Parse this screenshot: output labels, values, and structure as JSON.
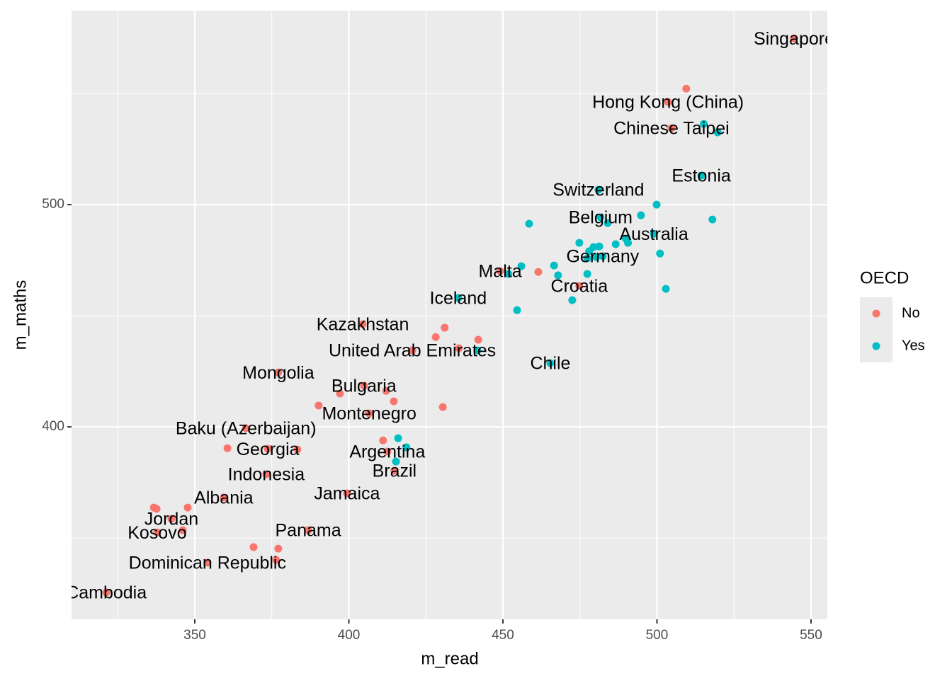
{
  "chart_data": {
    "type": "scatter",
    "x_label": "m_read",
    "y_label": "m_maths",
    "legend_title": "OECD",
    "legend": "right",
    "grid": true,
    "xlim": [
      310,
      555.3
    ],
    "ylim": [
      313.4,
      587.3
    ],
    "xticks": [
      350,
      400,
      450,
      500,
      550
    ],
    "yticks": [
      400,
      500
    ],
    "xminor": [
      325,
      375,
      425,
      475,
      525
    ],
    "yminor": [
      350,
      450,
      550
    ],
    "series": [
      {
        "name": "No",
        "color": "#f8766d",
        "x": [
          544.5,
          509.5,
          503.6,
          504.7,
          404.5,
          431.1,
          428.2,
          442,
          435.7,
          420.6,
          449.1,
          461.5,
          474.8,
          377.1,
          404.9,
          412.1,
          397.1,
          414.6,
          390.2,
          430.5,
          406.6,
          366.6,
          360.6,
          373.7,
          383.3,
          411.1,
          412.5,
          414.8,
          373.2,
          399.4,
          359.4,
          347.7,
          336.7,
          337.6,
          342.4,
          346.1,
          337.8,
          386.8,
          369.1,
          377.1,
          354.1,
          376.4,
          321.3
        ],
        "values": [
          574.8,
          552.2,
          546.2,
          534.4,
          446.2,
          444.6,
          440.4,
          439.2,
          435.4,
          434.4,
          470.1,
          469.7,
          463.4,
          424.5,
          418.5,
          416.2,
          415,
          411.5,
          409.6,
          408.9,
          406.1,
          399.4,
          390.4,
          390.1,
          389.8,
          393.9,
          388.9,
          380.3,
          378.7,
          370.1,
          368.2,
          363.7,
          363.7,
          363.1,
          358.6,
          353.5,
          352.5,
          353.5,
          345.9,
          345.2,
          338.9,
          340.1,
          325.5
        ],
        "labels": [
          "Singapore",
          null,
          "Hong Kong (China)",
          "Chinese Taipei",
          "Kazakhstan",
          null,
          null,
          null,
          null,
          "United Arab Emirates",
          "Malta",
          null,
          "Croatia",
          "Mongolia",
          "Bulgaria",
          null,
          null,
          null,
          null,
          null,
          "Montenegro",
          "Baku (Azerbaijan)",
          null,
          "Georgia",
          null,
          null,
          "Argentina",
          "Brazil",
          "Indonesia",
          "Jamaica",
          "Albania",
          null,
          null,
          null,
          "Jordan",
          null,
          "Kosovo",
          "Panama",
          null,
          null,
          "Dominican Republic",
          null,
          "Cambodia"
        ]
      },
      {
        "name": "Yes",
        "color": "#00bfc4",
        "x": [
          515.2,
          519.7,
          514.4,
          481,
          499.9,
          518,
          494.8,
          481.7,
          484,
          458.5,
          499,
          489.9,
          490.6,
          486.6,
          474.8,
          479.4,
          481.3,
          478,
          480.3,
          482.4,
          477.4,
          501,
          456,
          466.6,
          451.8,
          467.9,
          477.4,
          502.9,
          435.5,
          472.5,
          454.6,
          441.7,
          465.4,
          416,
          418.7,
          415.3
        ],
        "values": [
          536.3,
          532.5,
          513.1,
          506.7,
          500,
          493.3,
          495.2,
          494.3,
          491.7,
          491.4,
          486.9,
          484.7,
          482.8,
          482.2,
          482.8,
          480.9,
          481.2,
          479,
          476.4,
          476.8,
          475.8,
          478,
          472.3,
          472.6,
          468.8,
          468.2,
          468.8,
          462.1,
          458,
          457,
          452.5,
          434.4,
          428.7,
          394.9,
          390.8,
          384.4
        ],
        "labels": [
          null,
          null,
          "Estonia",
          "Switzerland",
          null,
          null,
          null,
          "Belgium",
          null,
          null,
          "Australia",
          null,
          null,
          null,
          null,
          null,
          null,
          null,
          null,
          "Germany",
          null,
          null,
          null,
          null,
          null,
          null,
          null,
          null,
          "Iceland",
          null,
          null,
          null,
          "Chile",
          null,
          null,
          null
        ]
      }
    ]
  }
}
